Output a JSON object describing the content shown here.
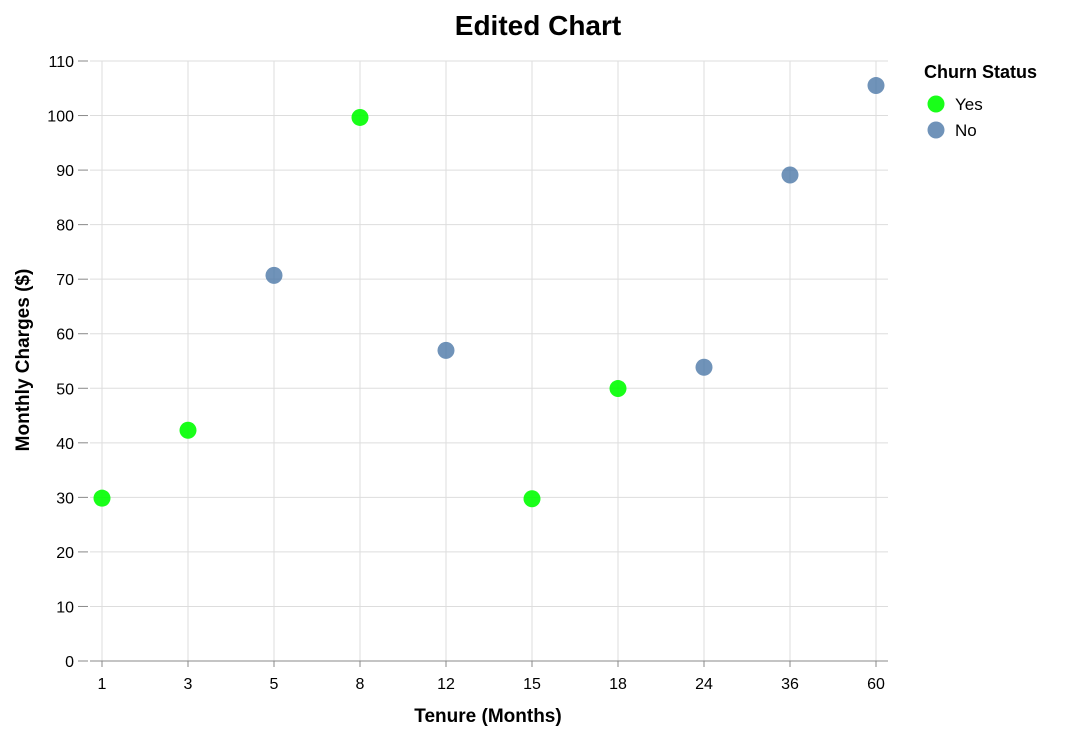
{
  "chart_data": {
    "type": "scatter",
    "title": "Edited Chart",
    "xlabel": "Tenure (Months)",
    "ylabel": "Monthly Charges ($)",
    "x_scale": "ordinal",
    "categories": [
      "1",
      "3",
      "5",
      "8",
      "12",
      "15",
      "18",
      "24",
      "36",
      "60"
    ],
    "ylim": [
      0,
      110
    ],
    "yticks": [
      0,
      10,
      20,
      30,
      40,
      50,
      60,
      70,
      80,
      90,
      100,
      110
    ],
    "grid": true,
    "legend": {
      "title": "Churn Status",
      "placement": "top-right",
      "entries": [
        "Yes",
        "No"
      ]
    },
    "series": [
      {
        "name": "Yes",
        "color": "#00ff00",
        "points": [
          {
            "x": "1",
            "y": 29.85
          },
          {
            "x": "3",
            "y": 42.3
          },
          {
            "x": "8",
            "y": 99.65
          },
          {
            "x": "15",
            "y": 29.75
          },
          {
            "x": "18",
            "y": 49.95
          }
        ]
      },
      {
        "name": "No",
        "color": "#4c78a8",
        "points": [
          {
            "x": "5",
            "y": 70.7
          },
          {
            "x": "12",
            "y": 56.95
          },
          {
            "x": "24",
            "y": 53.85
          },
          {
            "x": "36",
            "y": 89.1
          },
          {
            "x": "60",
            "y": 105.5
          }
        ]
      }
    ]
  }
}
